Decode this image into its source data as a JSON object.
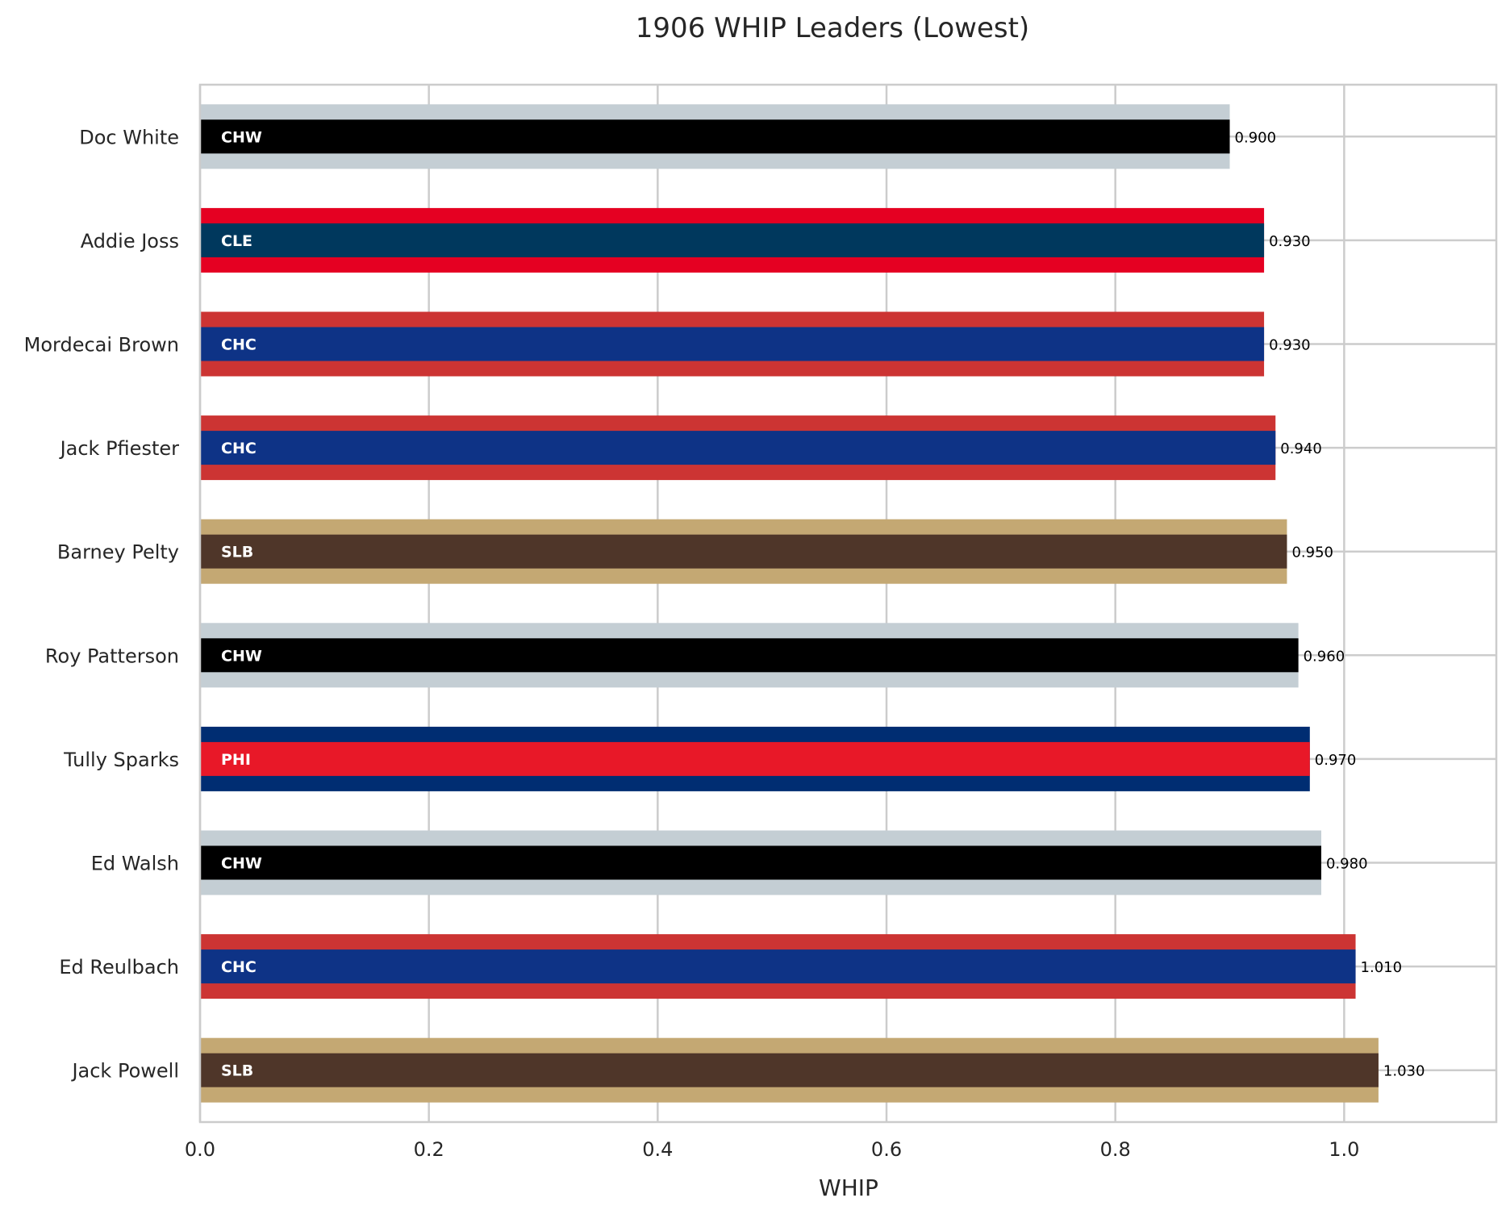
{
  "chart_data": {
    "type": "bar",
    "orientation": "horizontal",
    "title": "1906 WHIP Leaders (Lowest)",
    "xlabel": "WHIP",
    "ylabel": "",
    "xlim": [
      0,
      1.133
    ],
    "xticks": [
      "0.0",
      "0.2",
      "0.4",
      "0.6",
      "0.8",
      "1.0"
    ],
    "xtick_values": [
      0,
      0.2,
      0.4,
      0.6,
      0.8,
      1.0
    ],
    "grid": true,
    "categories": [
      "Doc White",
      "Addie Joss",
      "Mordecai Brown",
      "Jack Pfiester",
      "Barney Pelty",
      "Roy Patterson",
      "Tully Sparks",
      "Ed Walsh",
      "Ed Reulbach",
      "Jack Powell"
    ],
    "values": [
      0.9,
      0.93,
      0.93,
      0.94,
      0.95,
      0.96,
      0.97,
      0.98,
      1.01,
      1.03
    ],
    "value_labels": [
      "0.900",
      "0.930",
      "0.930",
      "0.940",
      "0.950",
      "0.960",
      "0.970",
      "0.980",
      "1.010",
      "1.030"
    ],
    "teams": [
      "CHW",
      "CLE",
      "CHC",
      "CHC",
      "SLB",
      "CHW",
      "PHI",
      "CHW",
      "CHC",
      "SLB"
    ],
    "team_colors": {
      "CHW": {
        "primary": "#000000",
        "secondary": "#C4CED4"
      },
      "CLE": {
        "primary": "#00385D",
        "secondary": "#E50022"
      },
      "CHC": {
        "primary": "#0E3386",
        "secondary": "#CC3433"
      },
      "SLB": {
        "primary": "#4F3629",
        "secondary": "#C4A873"
      },
      "PHI": {
        "primary": "#E81828",
        "secondary": "#002D72"
      }
    },
    "style": {
      "grid_color": "#cccccc",
      "frame_color": "#cccccc"
    }
  }
}
